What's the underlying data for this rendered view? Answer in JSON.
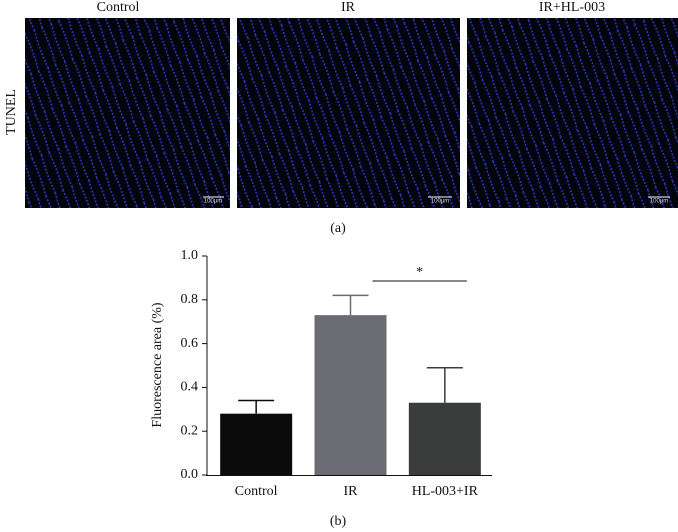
{
  "panel_a": {
    "row_label": "TUNEL",
    "columns": [
      "Control",
      "IR",
      "IR+HL-003"
    ],
    "scale_bar": "100μm",
    "caption": "(a)"
  },
  "chart_data": {
    "type": "bar",
    "ylabel": "Fluorescence area (%)",
    "categories": [
      "Control",
      "IR",
      "HL-003+IR"
    ],
    "values": [
      0.28,
      0.73,
      0.33
    ],
    "errors": [
      0.06,
      0.09,
      0.16
    ],
    "colors": [
      "#0b0b0b",
      "#6b6b73",
      "#3a3c3c"
    ],
    "ylim": [
      0,
      1
    ],
    "yticks": [
      {
        "value": 0,
        "label": "0.0"
      },
      {
        "value": 0.2,
        "label": "0.2"
      },
      {
        "value": 0.4,
        "label": "0.4"
      },
      {
        "value": 0.6,
        "label": "0.6"
      },
      {
        "value": 0.8,
        "label": "0.8"
      },
      {
        "value": 1,
        "label": "1.0"
      }
    ],
    "annotation": "*",
    "caption": "(b)"
  }
}
